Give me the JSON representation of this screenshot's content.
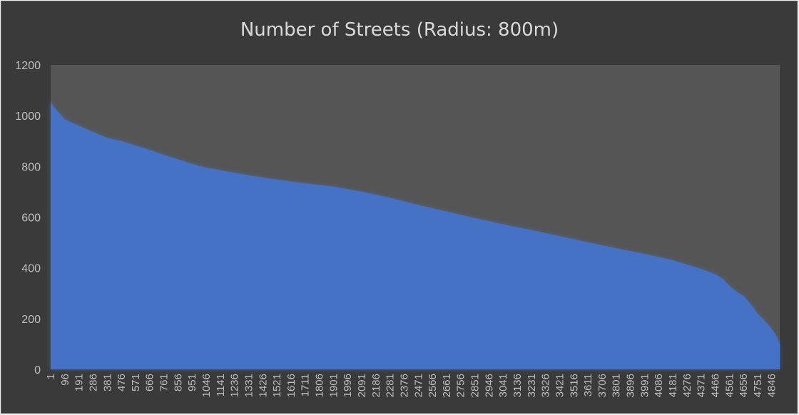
{
  "chart_data": {
    "type": "area",
    "title": "Number of Streets (Radius: 800m)",
    "xlabel": "",
    "ylabel": "",
    "ylim": [
      0,
      1200
    ],
    "yticks": [
      "0",
      "200",
      "400",
      "600",
      "800",
      "1000",
      "1200"
    ],
    "grid": false,
    "legend": "none",
    "x_count": 4900,
    "xticks": [
      "1",
      "96",
      "191",
      "286",
      "381",
      "476",
      "571",
      "666",
      "761",
      "856",
      "951",
      "1046",
      "1141",
      "1236",
      "1331",
      "1426",
      "1521",
      "1616",
      "1711",
      "1806",
      "1901",
      "1996",
      "2091",
      "2186",
      "2281",
      "2376",
      "2471",
      "2566",
      "2661",
      "2756",
      "2851",
      "2946",
      "3041",
      "3136",
      "3231",
      "3326",
      "3421",
      "3516",
      "3611",
      "3706",
      "3801",
      "3896",
      "3991",
      "4086",
      "4181",
      "4276",
      "4371",
      "4466",
      "4561",
      "4656",
      "4751",
      "4846"
    ],
    "series": [
      {
        "name": "Number of Streets",
        "points": [
          {
            "x": 1,
            "y": 1060
          },
          {
            "x": 20,
            "y": 1035
          },
          {
            "x": 96,
            "y": 985
          },
          {
            "x": 191,
            "y": 960
          },
          {
            "x": 286,
            "y": 935
          },
          {
            "x": 381,
            "y": 912
          },
          {
            "x": 476,
            "y": 900
          },
          {
            "x": 571,
            "y": 882
          },
          {
            "x": 666,
            "y": 865
          },
          {
            "x": 761,
            "y": 845
          },
          {
            "x": 856,
            "y": 828
          },
          {
            "x": 951,
            "y": 810
          },
          {
            "x": 1046,
            "y": 795
          },
          {
            "x": 1141,
            "y": 785
          },
          {
            "x": 1236,
            "y": 775
          },
          {
            "x": 1331,
            "y": 765
          },
          {
            "x": 1426,
            "y": 756
          },
          {
            "x": 1521,
            "y": 748
          },
          {
            "x": 1616,
            "y": 740
          },
          {
            "x": 1711,
            "y": 733
          },
          {
            "x": 1806,
            "y": 726
          },
          {
            "x": 1901,
            "y": 720
          },
          {
            "x": 1996,
            "y": 710
          },
          {
            "x": 2091,
            "y": 700
          },
          {
            "x": 2186,
            "y": 688
          },
          {
            "x": 2281,
            "y": 676
          },
          {
            "x": 2376,
            "y": 662
          },
          {
            "x": 2471,
            "y": 648
          },
          {
            "x": 2566,
            "y": 635
          },
          {
            "x": 2661,
            "y": 622
          },
          {
            "x": 2756,
            "y": 609
          },
          {
            "x": 2851,
            "y": 596
          },
          {
            "x": 2946,
            "y": 584
          },
          {
            "x": 3041,
            "y": 572
          },
          {
            "x": 3136,
            "y": 560
          },
          {
            "x": 3231,
            "y": 549
          },
          {
            "x": 3326,
            "y": 537
          },
          {
            "x": 3421,
            "y": 525
          },
          {
            "x": 3516,
            "y": 513
          },
          {
            "x": 3611,
            "y": 501
          },
          {
            "x": 3706,
            "y": 489
          },
          {
            "x": 3801,
            "y": 477
          },
          {
            "x": 3896,
            "y": 466
          },
          {
            "x": 3991,
            "y": 455
          },
          {
            "x": 4086,
            "y": 443
          },
          {
            "x": 4181,
            "y": 430
          },
          {
            "x": 4276,
            "y": 413
          },
          {
            "x": 4371,
            "y": 396
          },
          {
            "x": 4466,
            "y": 375
          },
          {
            "x": 4521,
            "y": 355
          },
          {
            "x": 4561,
            "y": 330
          },
          {
            "x": 4611,
            "y": 305
          },
          {
            "x": 4656,
            "y": 290
          },
          {
            "x": 4701,
            "y": 260
          },
          {
            "x": 4751,
            "y": 220
          },
          {
            "x": 4801,
            "y": 190
          },
          {
            "x": 4846,
            "y": 160
          },
          {
            "x": 4880,
            "y": 130
          },
          {
            "x": 4900,
            "y": 100
          }
        ]
      }
    ]
  },
  "colors": {
    "background": "#3a3a3a",
    "plot_area": "#555555",
    "series_fill": "#4472c4",
    "text": "#bfbfbf",
    "title": "#d9d9d9"
  }
}
